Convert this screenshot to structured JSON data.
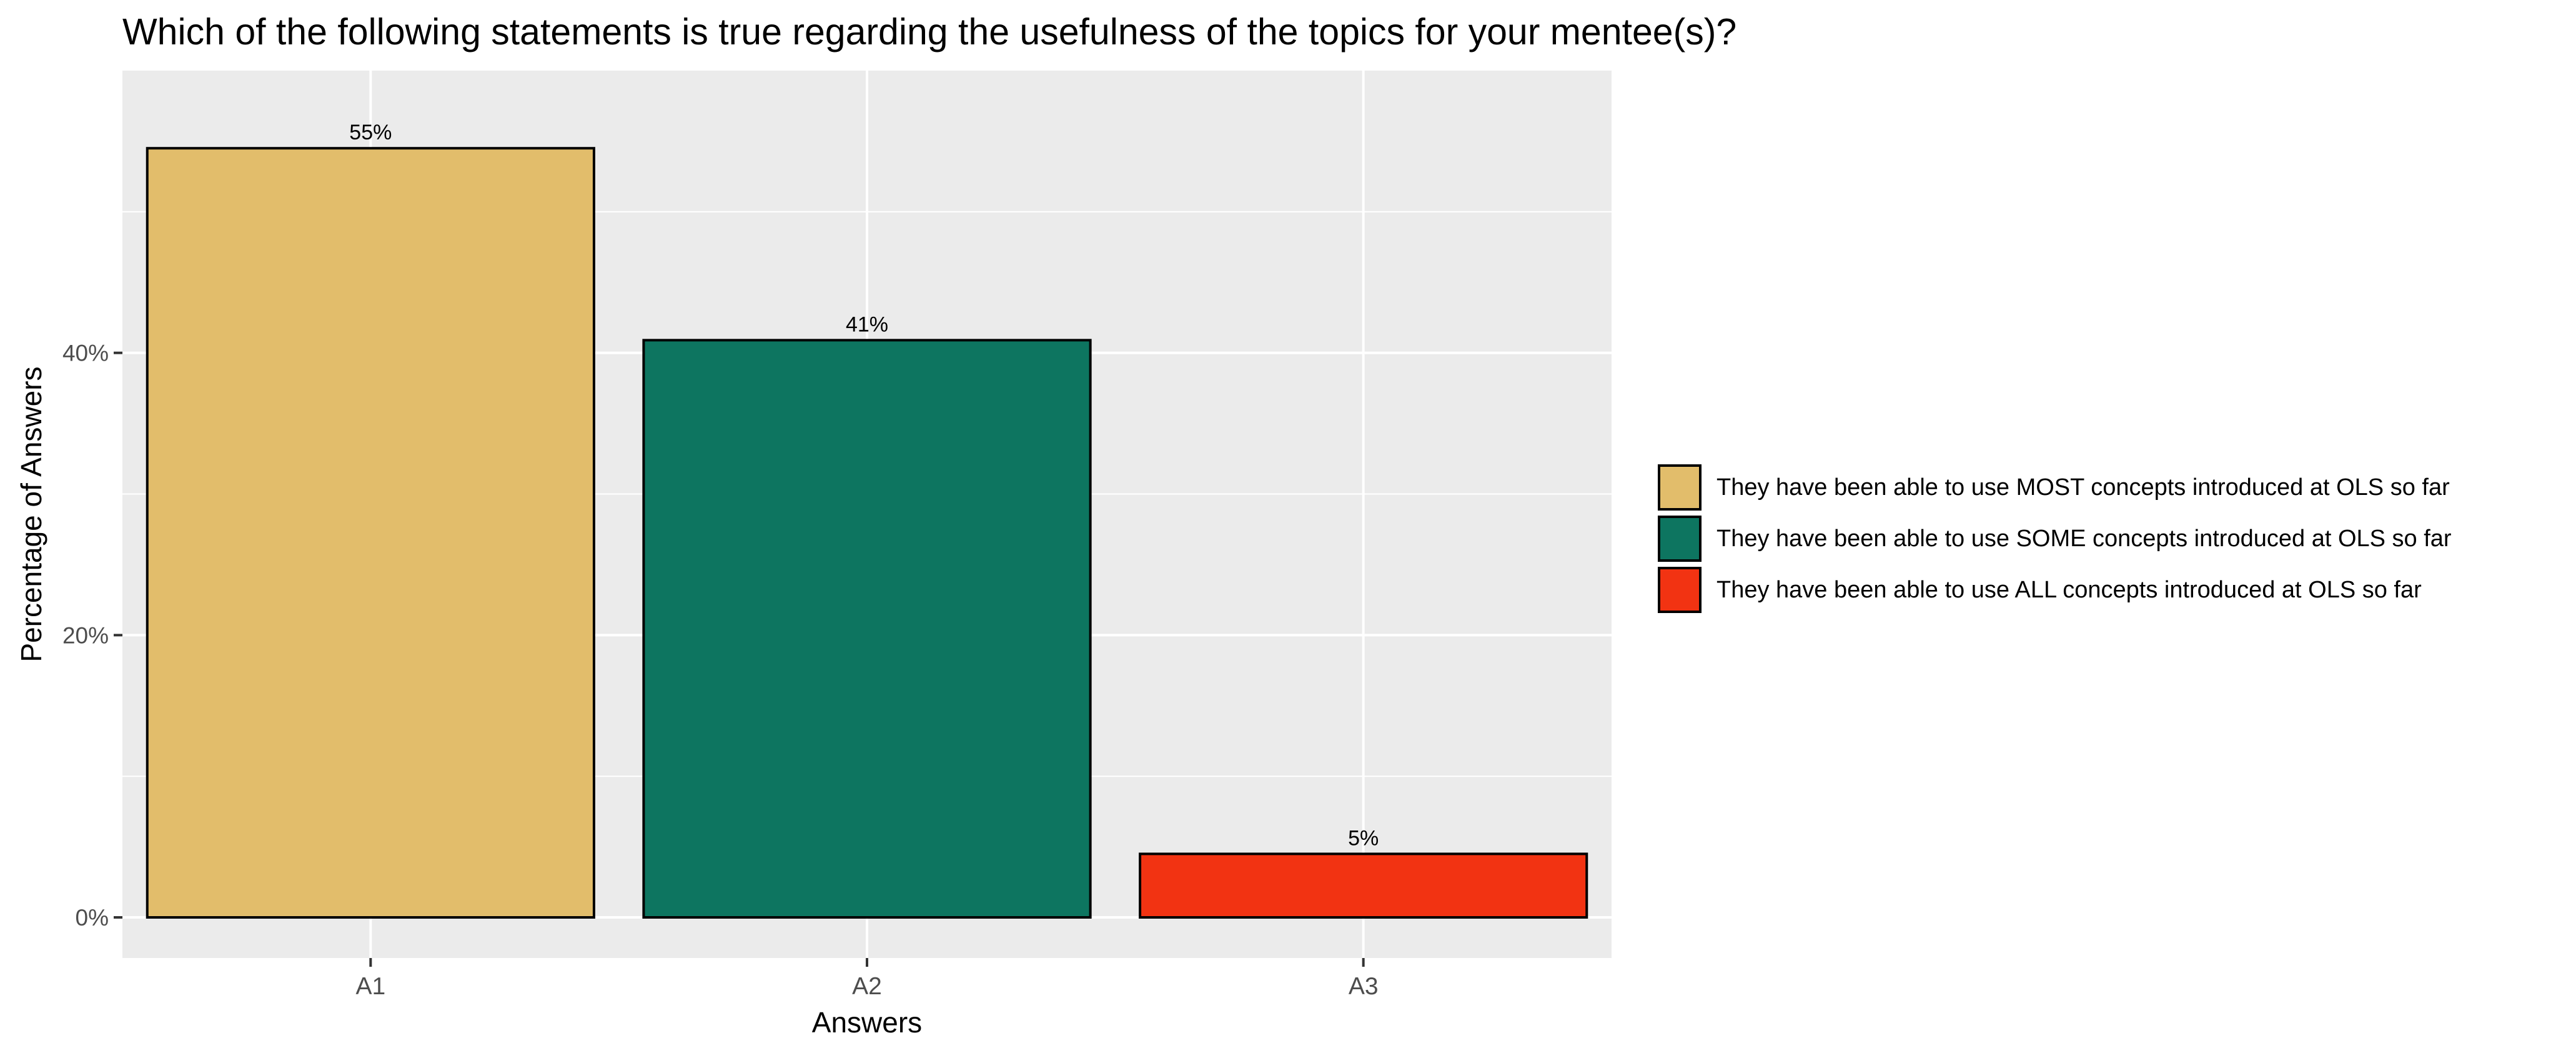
{
  "chart_data": {
    "type": "bar",
    "title": "Which of the following statements is true regarding the usefulness of the topics for your mentee(s)?",
    "xlabel": "Answers",
    "ylabel": "Percentage of Answers",
    "categories": [
      "A1",
      "A2",
      "A3"
    ],
    "values": [
      54.5,
      40.9,
      4.5
    ],
    "value_labels": [
      "55%",
      "41%",
      "5%"
    ],
    "colors": [
      "#E2BD6B",
      "#0D7560",
      "#F23312"
    ],
    "ylim": [
      0,
      60
    ],
    "y_ticks": [
      0,
      20,
      40
    ],
    "y_tick_labels": [
      "0%",
      "20%",
      "40%"
    ],
    "grid": true,
    "legend_position": "right",
    "legend": [
      {
        "label": "They have been able to use MOST concepts introduced at OLS so far",
        "color": "#E2BD6B"
      },
      {
        "label": "They have been able to use SOME concepts introduced at OLS so far",
        "color": "#0D7560"
      },
      {
        "label": "They have been able to use ALL concepts introduced at OLS so far",
        "color": "#F23312"
      }
    ]
  }
}
